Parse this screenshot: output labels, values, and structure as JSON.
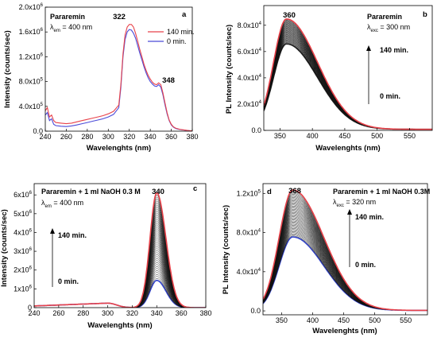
{
  "chart_data": [
    {
      "id": "a",
      "type": "line",
      "panel_letter": "a",
      "xlabel": "Wavelenghts (nm)",
      "ylabel": "Intensity (counts/sec)",
      "xlim": [
        240,
        380
      ],
      "ylim": [
        0,
        2000000
      ],
      "xticks": [
        240,
        260,
        280,
        300,
        320,
        340,
        360,
        380
      ],
      "yticks": [
        {
          "v": 0,
          "m": "0.0",
          "e": ""
        },
        {
          "v": 400000,
          "m": "4.0x10",
          "e": "5"
        },
        {
          "v": 800000,
          "m": "8.0x10",
          "e": "5"
        },
        {
          "v": 1200000,
          "m": "1.2x10",
          "e": "6"
        },
        {
          "v": 1600000,
          "m": "1.6x10",
          "e": "6"
        },
        {
          "v": 2000000,
          "m": "2.0x10",
          "e": "6"
        }
      ],
      "annotations": [
        "Pararemin",
        "λem = 400 nm"
      ],
      "peak_labels": [
        {
          "text": "322",
          "x": 322,
          "y": 1790000
        },
        {
          "text": "348",
          "x": 350,
          "y": 880000
        }
      ],
      "legend_position": "top-right",
      "series": [
        {
          "name": "140 min.",
          "color": "#e8424a",
          "x": [
            240,
            242,
            244,
            246,
            248,
            250,
            255,
            260,
            265,
            270,
            275,
            280,
            285,
            290,
            295,
            300,
            305,
            310,
            312,
            314,
            316,
            318,
            320,
            322,
            324,
            326,
            328,
            330,
            332,
            334,
            336,
            338,
            340,
            342,
            344,
            346,
            348,
            350,
            352,
            354,
            356,
            358,
            360,
            362,
            364,
            366,
            368,
            370,
            372,
            374,
            376,
            378,
            380
          ],
          "values": [
            330000,
            380000,
            230000,
            260000,
            170000,
            140000,
            130000,
            120000,
            130000,
            150000,
            170000,
            190000,
            210000,
            230000,
            250000,
            280000,
            320000,
            420000,
            750000,
            1250000,
            1550000,
            1680000,
            1720000,
            1720000,
            1680000,
            1580000,
            1450000,
            1320000,
            1200000,
            1080000,
            980000,
            900000,
            840000,
            790000,
            760000,
            750000,
            780000,
            750000,
            620000,
            460000,
            300000,
            180000,
            110000,
            70000,
            50000,
            40000,
            30000,
            25000,
            20000,
            15000,
            10000,
            8000,
            5000
          ]
        },
        {
          "name": "0 min.",
          "color": "#4a4ad8",
          "x": [
            240,
            242,
            244,
            246,
            248,
            250,
            255,
            260,
            265,
            270,
            275,
            280,
            285,
            290,
            295,
            300,
            305,
            310,
            312,
            314,
            316,
            318,
            320,
            322,
            324,
            326,
            328,
            330,
            332,
            334,
            336,
            338,
            340,
            342,
            344,
            346,
            348,
            350,
            352,
            354,
            356,
            358,
            360,
            362,
            364,
            366,
            368,
            370,
            372,
            374,
            376,
            378,
            380
          ],
          "values": [
            260000,
            300000,
            170000,
            200000,
            110000,
            90000,
            80000,
            75000,
            85000,
            100000,
            120000,
            140000,
            160000,
            180000,
            200000,
            230000,
            270000,
            380000,
            700000,
            1200000,
            1480000,
            1600000,
            1640000,
            1630000,
            1580000,
            1500000,
            1380000,
            1260000,
            1150000,
            1040000,
            940000,
            860000,
            800000,
            760000,
            730000,
            720000,
            750000,
            710000,
            590000,
            430000,
            280000,
            170000,
            100000,
            65000,
            45000,
            35000,
            28000,
            22000,
            18000,
            14000,
            10000,
            7000,
            5000
          ]
        }
      ]
    },
    {
      "id": "b",
      "type": "line",
      "panel_letter": "b",
      "xlabel": "Wavelenghts (nm)",
      "ylabel": "PL Intensity (counts/sec)",
      "xlim": [
        325,
        585
      ],
      "ylim": [
        0,
        95000
      ],
      "xticks": [
        350,
        400,
        450,
        500,
        550
      ],
      "yticks": [
        {
          "v": 0,
          "m": "0.0",
          "e": ""
        },
        {
          "v": 20000,
          "m": "2.0x10",
          "e": "4"
        },
        {
          "v": 40000,
          "m": "4.0x10",
          "e": "4"
        },
        {
          "v": 60000,
          "m": "6.0x10",
          "e": "4"
        },
        {
          "v": 80000,
          "m": "8.0x10",
          "e": "4"
        }
      ],
      "annotations": [
        "Pararemin",
        "λexc = 300 nm",
        "140 min.",
        "0 min."
      ],
      "peak_labels": [
        {
          "text": "360",
          "x": 360,
          "y": 86000
        }
      ],
      "family": {
        "peak": 360,
        "left_width": 20,
        "right_width": 48,
        "baseline": 800,
        "max_peak": 84000,
        "min_peak": 65000,
        "count": 45,
        "top_color": "#e8424a",
        "bottom_color": "#222222",
        "mid_color": "#111111"
      }
    },
    {
      "id": "c",
      "type": "line",
      "panel_letter": "c",
      "xlabel": "Wavelenghts (nm)",
      "ylabel": "Intensity (counts/sec)",
      "xlim": [
        240,
        380
      ],
      "ylim": [
        0,
        6600000
      ],
      "xticks": [
        240,
        260,
        280,
        300,
        320,
        340,
        360,
        380
      ],
      "yticks": [
        {
          "v": 0,
          "m": "0",
          "e": ""
        },
        {
          "v": 1000000,
          "m": "1x10",
          "e": "6"
        },
        {
          "v": 2000000,
          "m": "2x10",
          "e": "6"
        },
        {
          "v": 3000000,
          "m": "3x10",
          "e": "6"
        },
        {
          "v": 4000000,
          "m": "4x10",
          "e": "6"
        },
        {
          "v": 5000000,
          "m": "5x10",
          "e": "6"
        },
        {
          "v": 6000000,
          "m": "6x10",
          "e": "6"
        }
      ],
      "annotations": [
        "Pararemin + 1 ml NaOH 0.3 M",
        "λem = 400 nm",
        "140 min.",
        "0 min."
      ],
      "peak_labels": [
        {
          "text": "340",
          "x": 340,
          "y": 6250000
        }
      ],
      "family": {
        "peak": 340,
        "left_width": 5.5,
        "right_width": 7.5,
        "baseline": 0,
        "max_peak": 6100000,
        "min_peak": 1450000,
        "count": 45,
        "top_color": "#e8424a",
        "bottom_color": "#3344cc",
        "mid_color": "#111111",
        "hump": [
          240,
          90000,
          300,
          240000
        ]
      }
    },
    {
      "id": "d",
      "type": "line",
      "panel_letter": "d",
      "xlabel": "Wavelenghts (nm)",
      "ylabel": "PL Intensity (counts/sec)",
      "xlim": [
        320,
        585
      ],
      "ylim": [
        -4000,
        130000
      ],
      "xticks": [
        350,
        400,
        450,
        500,
        550
      ],
      "yticks": [
        {
          "v": 0,
          "m": "0.0",
          "e": ""
        },
        {
          "v": 40000,
          "m": "4.0x10",
          "e": "4"
        },
        {
          "v": 80000,
          "m": "8.0x10",
          "e": "4"
        },
        {
          "v": 120000,
          "m": "1.2x10",
          "e": "5"
        }
      ],
      "annotations": [
        "Pararemin + 1 ml NaOH 0.3M",
        "λexc = 320 nm",
        "140 min.",
        "0 min."
      ],
      "peak_labels": [
        {
          "text": "368",
          "x": 368,
          "y": 124000
        }
      ],
      "family": {
        "peak": 368,
        "left_width": 22,
        "right_width": 50,
        "baseline": 500,
        "max_peak": 123000,
        "min_peak": 75000,
        "count": 45,
        "top_color": "#e8424a",
        "bottom_color": "#3344cc",
        "mid_color": "#111111"
      }
    }
  ]
}
